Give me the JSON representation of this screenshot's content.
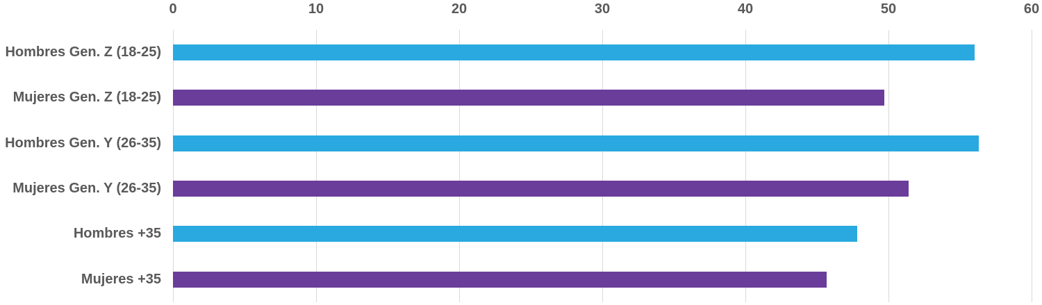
{
  "chart_data": {
    "type": "bar",
    "orientation": "horizontal",
    "title": "",
    "xlabel": "",
    "ylabel": "",
    "categories": [
      "Hombres Gen. Z (18-25)",
      "Mujeres Gen. Z (18-25)",
      "Hombres Gen. Y (26-35)",
      "Mujeres Gen. Y (26-35)",
      "Hombres +35",
      "Mujeres +35"
    ],
    "values": [
      56.0,
      49.7,
      56.3,
      51.4,
      47.8,
      45.7
    ],
    "bar_colors": [
      "#29A9E0",
      "#6A3D9B",
      "#29A9E0",
      "#6A3D9B",
      "#29A9E0",
      "#6A3D9B"
    ],
    "xlim": [
      0,
      60
    ],
    "x_ticks": [
      0,
      10,
      20,
      30,
      40,
      50,
      60
    ],
    "x_axis_position": "top",
    "grid": "vertical-only",
    "legend": "none",
    "colors": {
      "bar_blue": "#29A9E0",
      "bar_purple": "#6A3D9B",
      "gridline": "#d9d9d9",
      "axis_text": "#595959"
    }
  }
}
